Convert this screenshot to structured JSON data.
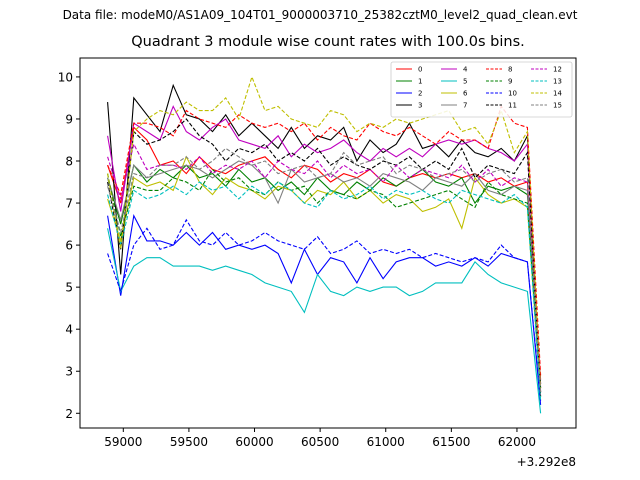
{
  "suptitle": "Data file: modeM0/AS1A09_104T01_9000003710_25382cztM0_level2_quad_clean.evt",
  "chart_data": {
    "type": "line",
    "title": "Quadrant 3 module wise count rates with 100.0s bins.",
    "xlabel": "",
    "ylabel": "",
    "x_offset_label": "+3.292e8",
    "xlim": [
      58670,
      62450
    ],
    "ylim": [
      1.65,
      10.45
    ],
    "xticks": [
      59000,
      59500,
      60000,
      60500,
      61000,
      61500,
      62000
    ],
    "xtick_labels": [
      "59000",
      "59500",
      "60000",
      "60500",
      "61000",
      "61500",
      "62000"
    ],
    "yticks": [
      2,
      3,
      4,
      5,
      6,
      7,
      8,
      9,
      10
    ],
    "ytick_labels": [
      "2",
      "3",
      "4",
      "5",
      "6",
      "7",
      "8",
      "9",
      "10"
    ],
    "grid": false,
    "legend": {
      "placement": "top-right",
      "columns": 4
    },
    "x": [
      58880,
      58980,
      59080,
      59180,
      59280,
      59380,
      59480,
      59580,
      59680,
      59780,
      59880,
      59980,
      60080,
      60180,
      60280,
      60380,
      60480,
      60580,
      60680,
      60780,
      60880,
      60980,
      61080,
      61180,
      61280,
      61380,
      61480,
      61580,
      61680,
      61780,
      61880,
      61980,
      62080,
      62180
    ],
    "series": [
      {
        "name": "0",
        "color": "#ff0000",
        "dash": "solid",
        "values": [
          7.9,
          7.0,
          8.8,
          8.5,
          7.9,
          8.0,
          7.7,
          8.1,
          7.8,
          7.7,
          7.9,
          8.0,
          8.1,
          7.8,
          7.6,
          7.9,
          7.8,
          7.5,
          7.7,
          7.6,
          7.8,
          7.5,
          7.4,
          7.6,
          7.7,
          7.6,
          7.7,
          7.6,
          7.7,
          7.5,
          7.6,
          7.4,
          7.5,
          2.8
        ]
      },
      {
        "name": "1",
        "color": "#008000",
        "dash": "solid",
        "values": [
          7.6,
          6.5,
          7.9,
          7.5,
          7.8,
          7.6,
          7.9,
          7.6,
          7.7,
          7.4,
          7.8,
          7.5,
          7.6,
          7.3,
          7.5,
          7.2,
          7.6,
          7.3,
          7.2,
          7.5,
          7.3,
          7.6,
          7.4,
          7.6,
          7.8,
          7.5,
          7.4,
          7.6,
          7.0,
          7.4,
          7.3,
          7.4,
          7.2,
          2.7
        ]
      },
      {
        "name": "2",
        "color": "#0000ff",
        "dash": "solid",
        "values": [
          6.7,
          4.8,
          6.7,
          6.1,
          6.1,
          6.0,
          6.3,
          6.0,
          6.3,
          5.9,
          6.0,
          5.9,
          6.0,
          5.8,
          5.1,
          5.9,
          5.3,
          5.7,
          5.6,
          5.1,
          5.7,
          5.2,
          5.6,
          5.7,
          5.7,
          5.5,
          5.6,
          5.5,
          5.7,
          5.5,
          5.8,
          5.7,
          5.6,
          2.2
        ]
      },
      {
        "name": "3",
        "color": "#000000",
        "dash": "solid",
        "values": [
          9.4,
          5.3,
          9.5,
          9.1,
          8.7,
          9.8,
          9.1,
          9.0,
          8.7,
          9.1,
          8.6,
          8.9,
          8.6,
          8.3,
          8.8,
          8.3,
          8.6,
          8.5,
          8.8,
          8.0,
          8.5,
          8.2,
          8.4,
          8.9,
          8.3,
          8.4,
          8.1,
          8.5,
          8.2,
          8.1,
          8.3,
          8.0,
          8.6,
          2.5
        ]
      },
      {
        "name": "4",
        "color": "#bf00bf",
        "dash": "solid",
        "values": [
          8.6,
          6.8,
          8.9,
          8.7,
          8.5,
          9.3,
          8.7,
          8.5,
          8.8,
          9.0,
          8.5,
          8.4,
          8.3,
          8.6,
          8.1,
          8.4,
          8.2,
          8.3,
          8.5,
          8.2,
          8.0,
          8.3,
          8.1,
          8.3,
          8.1,
          8.4,
          8.5,
          8.4,
          8.5,
          8.3,
          8.2,
          8.0,
          8.4,
          2.6
        ]
      },
      {
        "name": "5",
        "color": "#00bfbf",
        "dash": "solid",
        "values": [
          6.4,
          4.9,
          5.5,
          5.7,
          5.7,
          5.5,
          5.5,
          5.5,
          5.4,
          5.5,
          5.4,
          5.3,
          5.1,
          5.0,
          4.9,
          4.4,
          5.3,
          4.9,
          4.8,
          5.0,
          4.9,
          5.0,
          5.0,
          4.8,
          4.9,
          5.1,
          5.1,
          5.1,
          5.6,
          5.3,
          5.1,
          5.0,
          4.9,
          2.0
        ]
      },
      {
        "name": "6",
        "color": "#bfbf00",
        "dash": "solid",
        "values": [
          7.1,
          6.1,
          7.6,
          7.4,
          7.5,
          7.3,
          8.1,
          7.5,
          7.2,
          7.6,
          7.4,
          7.3,
          7.1,
          7.4,
          7.3,
          7.0,
          7.3,
          7.2,
          7.5,
          7.1,
          7.3,
          7.0,
          7.2,
          7.1,
          6.8,
          6.9,
          7.1,
          6.4,
          7.6,
          7.2,
          7.0,
          7.1,
          6.9,
          2.4
        ]
      },
      {
        "name": "7",
        "color": "#808080",
        "dash": "solid",
        "values": [
          7.6,
          6.6,
          7.9,
          7.6,
          7.7,
          7.8,
          7.9,
          7.8,
          7.6,
          7.8,
          8.0,
          7.9,
          7.6,
          7.0,
          7.8,
          7.5,
          7.6,
          7.7,
          7.5,
          7.6,
          7.4,
          7.7,
          7.6,
          7.5,
          7.3,
          7.6,
          7.5,
          7.4,
          7.7,
          7.3,
          7.2,
          7.4,
          7.3,
          2.5
        ]
      },
      {
        "name": "8",
        "color": "#ff0000",
        "dash": "dashed",
        "values": [
          7.9,
          7.2,
          8.9,
          8.9,
          8.8,
          8.6,
          9.2,
          9.0,
          8.9,
          8.8,
          9.1,
          8.9,
          8.8,
          8.9,
          8.7,
          8.9,
          8.5,
          8.8,
          8.6,
          8.5,
          8.9,
          8.7,
          8.6,
          8.8,
          8.6,
          8.4,
          8.7,
          8.5,
          8.5,
          8.3,
          9.3,
          8.9,
          8.8,
          2.9
        ]
      },
      {
        "name": "9",
        "color": "#008000",
        "dash": "dashed",
        "values": [
          7.7,
          6.2,
          7.4,
          7.3,
          7.3,
          7.6,
          7.5,
          7.3,
          7.8,
          7.5,
          7.6,
          7.3,
          7.2,
          7.5,
          7.3,
          7.4,
          7.0,
          7.3,
          7.2,
          7.1,
          7.3,
          7.2,
          6.9,
          7.0,
          7.1,
          7.2,
          7.3,
          7.1,
          6.9,
          7.5,
          7.2,
          7.1,
          7.0,
          2.6
        ]
      },
      {
        "name": "10",
        "color": "#0000ff",
        "dash": "dashed",
        "values": [
          5.8,
          4.9,
          6.0,
          6.4,
          5.9,
          6.0,
          6.6,
          6.1,
          6.0,
          6.3,
          6.0,
          6.1,
          6.3,
          6.1,
          6.0,
          5.9,
          6.2,
          5.8,
          5.9,
          6.1,
          5.8,
          5.9,
          5.8,
          5.9,
          5.7,
          5.8,
          5.7,
          5.6,
          5.7,
          5.6,
          6.0,
          5.7,
          5.6,
          2.3
        ]
      },
      {
        "name": "11",
        "color": "#000000",
        "dash": "dashed",
        "values": [
          7.5,
          5.9,
          8.7,
          8.4,
          8.5,
          8.7,
          9.0,
          8.6,
          8.4,
          8.0,
          8.3,
          8.2,
          8.4,
          8.0,
          8.2,
          8.0,
          8.3,
          7.9,
          8.1,
          7.9,
          7.8,
          8.0,
          7.9,
          8.1,
          7.8,
          8.0,
          7.8,
          8.3,
          7.6,
          7.9,
          7.8,
          7.7,
          8.2,
          2.4
        ]
      },
      {
        "name": "12",
        "color": "#bf00bf",
        "dash": "dashed",
        "values": [
          8.1,
          7.1,
          8.4,
          7.8,
          7.9,
          7.9,
          7.8,
          8.1,
          7.7,
          7.9,
          7.8,
          8.0,
          7.6,
          8.0,
          7.8,
          7.7,
          8.0,
          7.6,
          7.9,
          7.7,
          7.8,
          7.5,
          7.9,
          7.6,
          7.8,
          7.7,
          7.6,
          7.9,
          7.5,
          7.8,
          7.4,
          7.6,
          7.5,
          2.7
        ]
      },
      {
        "name": "13",
        "color": "#00bfbf",
        "dash": "dashed",
        "values": [
          7.2,
          6.0,
          7.3,
          7.1,
          7.2,
          7.4,
          7.2,
          7.5,
          7.3,
          7.4,
          7.1,
          7.4,
          7.2,
          7.5,
          7.3,
          7.0,
          6.9,
          7.3,
          7.1,
          7.2,
          7.4,
          7.1,
          7.3,
          7.2,
          7.3,
          7.1,
          7.0,
          7.3,
          7.2,
          7.1,
          7.0,
          7.2,
          6.9,
          2.3
        ]
      },
      {
        "name": "14",
        "color": "#bfbf00",
        "dash": "dashed",
        "values": [
          7.7,
          5.9,
          8.7,
          9.0,
          9.2,
          9.1,
          9.4,
          9.2,
          9.2,
          9.5,
          9.0,
          10.0,
          9.2,
          9.3,
          9.0,
          8.9,
          8.8,
          9.2,
          9.1,
          8.7,
          8.9,
          8.8,
          9.0,
          8.9,
          9.0,
          9.1,
          9.2,
          8.7,
          8.8,
          8.4,
          9.2,
          8.2,
          8.7,
          2.6
        ]
      },
      {
        "name": "15",
        "color": "#808080",
        "dash": "dashed",
        "values": [
          7.4,
          6.3,
          7.7,
          7.6,
          7.9,
          7.9,
          8.1,
          7.8,
          8.0,
          8.3,
          8.1,
          7.9,
          8.0,
          7.7,
          7.8,
          7.9,
          7.6,
          7.7,
          8.2,
          7.9,
          8.0,
          8.1,
          7.7,
          7.9,
          7.8,
          7.6,
          7.7,
          7.8,
          7.5,
          7.7,
          7.8,
          7.5,
          7.6,
          2.5
        ]
      }
    ]
  }
}
